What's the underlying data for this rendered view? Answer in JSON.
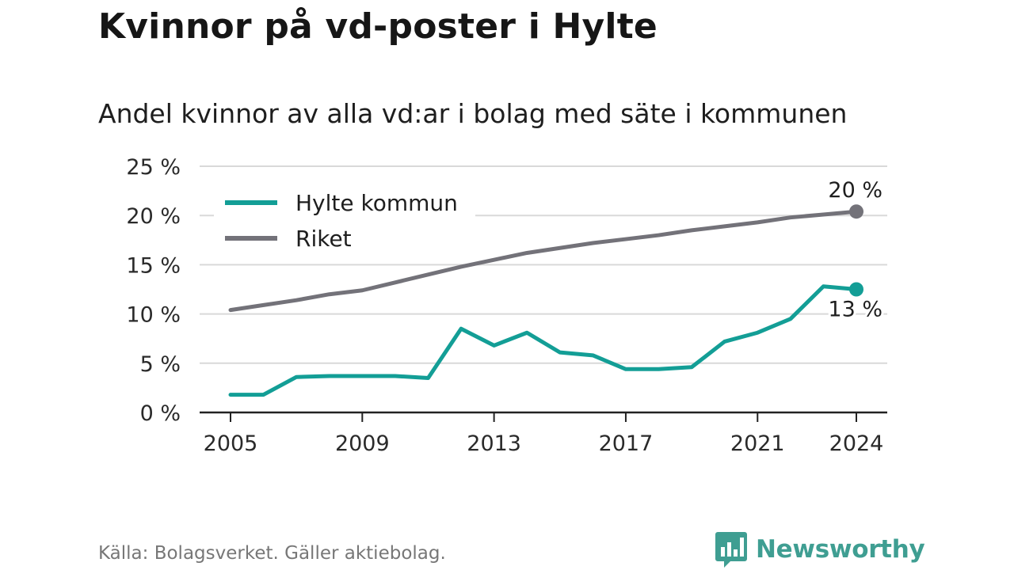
{
  "title": "Kvinnor på vd-poster i Hylte",
  "subtitle": "Andel kvinnor av alla vd:ar i bolag med säte i kommunen",
  "source": "Källa: Bolagsverket. Gäller aktiebolag.",
  "brand": "Newsworthy",
  "colors": {
    "hylte": "#139e96",
    "riket": "#737279",
    "grid": "#d9d9d9",
    "axis": "#222222",
    "brand": "#3f9e92"
  },
  "chart_data": {
    "type": "line",
    "x": [
      2005,
      2006,
      2007,
      2008,
      2009,
      2010,
      2011,
      2012,
      2013,
      2014,
      2015,
      2016,
      2017,
      2018,
      2019,
      2020,
      2021,
      2022,
      2023,
      2024
    ],
    "series": [
      {
        "name": "Hylte kommun",
        "color": "#139e96",
        "values": [
          1.8,
          1.8,
          3.6,
          3.7,
          3.7,
          3.7,
          3.5,
          8.5,
          6.8,
          8.1,
          6.1,
          5.8,
          4.4,
          4.4,
          4.6,
          7.2,
          8.1,
          9.5,
          12.8,
          12.5
        ],
        "end_label": "13 %"
      },
      {
        "name": "Riket",
        "color": "#737279",
        "values": [
          10.4,
          10.9,
          11.4,
          12.0,
          12.4,
          13.2,
          14.0,
          14.8,
          15.5,
          16.2,
          16.7,
          17.2,
          17.6,
          18.0,
          18.5,
          18.9,
          19.3,
          19.8,
          20.1,
          20.4
        ],
        "end_label": "20 %"
      }
    ],
    "yticks": [
      {
        "value": 0,
        "label": "0 %"
      },
      {
        "value": 5,
        "label": "5 %"
      },
      {
        "value": 10,
        "label": "10 %"
      },
      {
        "value": 15,
        "label": "15 %"
      },
      {
        "value": 20,
        "label": "20 %"
      },
      {
        "value": 25,
        "label": "25 %"
      }
    ],
    "xticks": [
      {
        "value": 2005,
        "label": "2005"
      },
      {
        "value": 2009,
        "label": "2009"
      },
      {
        "value": 2013,
        "label": "2013"
      },
      {
        "value": 2017,
        "label": "2017"
      },
      {
        "value": 2021,
        "label": "2021"
      },
      {
        "value": 2024,
        "label": "2024"
      }
    ],
    "ylim": [
      0,
      25
    ],
    "xlim": [
      2005,
      2024
    ],
    "grid": true,
    "legend": "top-left"
  }
}
